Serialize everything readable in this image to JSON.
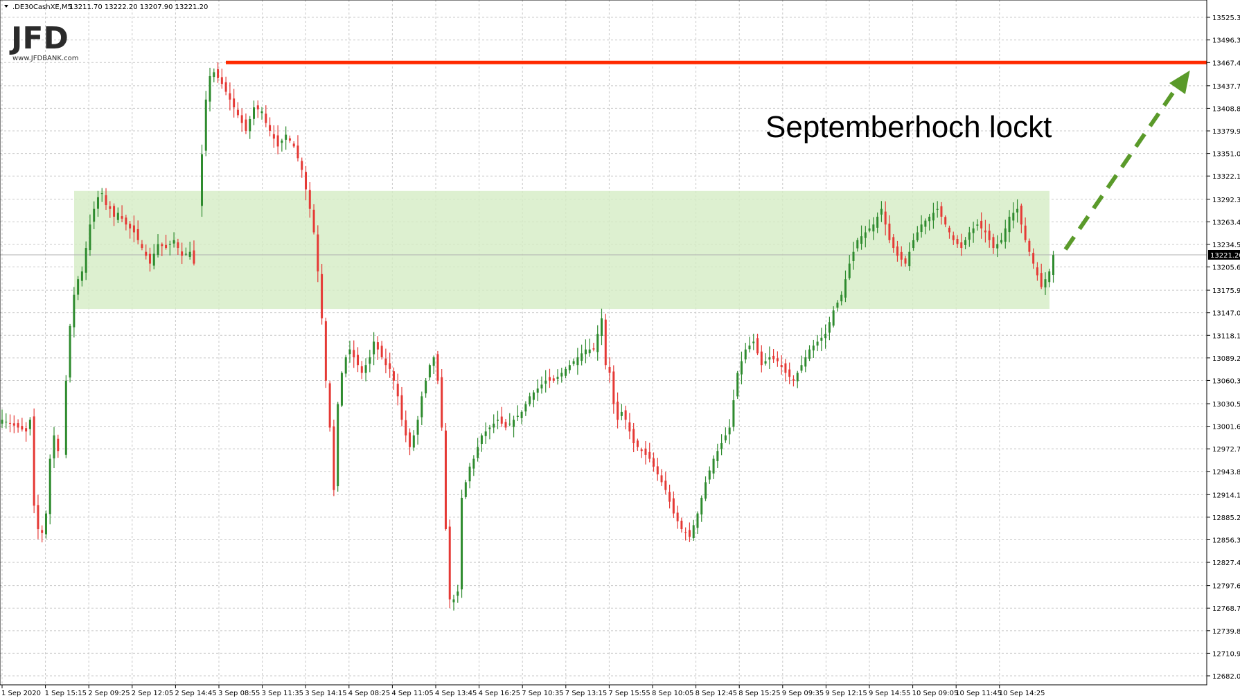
{
  "header": {
    "symbol": ".DE30CashXE,M5",
    "ohlc": "13211.70 13222.20 13207.90 13221.20"
  },
  "logo": {
    "brand": "JFD",
    "site": "www.JFDBANK.com"
  },
  "annotation": {
    "text": "Septemberhoch lockt"
  },
  "colors": {
    "bull": "#2e8b2e",
    "bear": "#e53935",
    "grid": "#c8c8c8",
    "zone": "#d4ecc4",
    "resistance": "#ff2a00",
    "arrow": "#5a9a2a",
    "price_tag_bg": "#000000"
  },
  "chart_data": {
    "type": "candlestick",
    "timeframe": "M5",
    "y_axis_ticks": [
      "13525.35",
      "13496.35",
      "13467.45",
      "13437.70",
      "13408.80",
      "13379.90",
      "13351.00",
      "13322.10",
      "13292.35",
      "13263.45",
      "13234.55",
      "13205.65",
      "13175.90",
      "13147.00",
      "13118.10",
      "13089.20",
      "13060.30",
      "13030.55",
      "13001.65",
      "12972.75",
      "12943.85",
      "12914.10",
      "12885.20",
      "12856.30",
      "12827.40",
      "12797.65",
      "12768.75",
      "12739.85",
      "12710.95",
      "12682.05"
    ],
    "ylim": [
      12678,
      13541
    ],
    "x_axis_ticks": [
      "1 Sep 2020",
      "1 Sep 15:15",
      "2 Sep 09:25",
      "2 Sep 12:05",
      "2 Sep 14:45",
      "3 Sep 08:55",
      "3 Sep 11:35",
      "3 Sep 14:15",
      "4 Sep 08:25",
      "4 Sep 11:05",
      "4 Sep 13:45",
      "4 Sep 16:25",
      "7 Sep 10:35",
      "7 Sep 13:15",
      "7 Sep 15:55",
      "8 Sep 10:05",
      "8 Sep 12:45",
      "8 Sep 15:25",
      "9 Sep 09:35",
      "9 Sep 12:15",
      "9 Sep 14:55",
      "10 Sep 09:05",
      "10 Sep 11:45",
      "10 Sep 14:25"
    ],
    "current_price": "13221.20",
    "resistance_level": 13467.45,
    "zone": {
      "low": 13152,
      "high": 13303
    },
    "price_path": [
      [
        0,
        13010
      ],
      [
        2,
        13005
      ],
      [
        4,
        13000
      ],
      [
        6,
        12995
      ],
      [
        7,
        13010
      ],
      [
        8,
        12900
      ],
      [
        9,
        12870
      ],
      [
        10,
        12865
      ],
      [
        11,
        12890
      ],
      [
        12,
        12960
      ],
      [
        13,
        12990
      ],
      [
        14,
        12970
      ],
      [
        15,
        12965
      ],
      [
        16,
        13060
      ],
      [
        17,
        13130
      ],
      [
        18,
        13170
      ],
      [
        19,
        13190
      ],
      [
        20,
        13200
      ],
      [
        21,
        13230
      ],
      [
        22,
        13260
      ],
      [
        23,
        13280
      ],
      [
        24,
        13295
      ],
      [
        25,
        13300
      ],
      [
        26,
        13285
      ],
      [
        27,
        13280
      ],
      [
        28,
        13270
      ],
      [
        29,
        13275
      ],
      [
        31,
        13260
      ],
      [
        33,
        13250
      ],
      [
        35,
        13230
      ],
      [
        37,
        13210
      ],
      [
        39,
        13235
      ],
      [
        41,
        13230
      ],
      [
        43,
        13240
      ],
      [
        45,
        13220
      ],
      [
        47,
        13225
      ],
      [
        48,
        13210
      ],
      [
        50,
        13350
      ],
      [
        51,
        13420
      ],
      [
        52,
        13450
      ],
      [
        53,
        13455
      ],
      [
        55,
        13440
      ],
      [
        57,
        13420
      ],
      [
        59,
        13400
      ],
      [
        61,
        13380
      ],
      [
        63,
        13410
      ],
      [
        65,
        13405
      ],
      [
        66,
        13390
      ],
      [
        67,
        13380
      ],
      [
        68,
        13370
      ],
      [
        69,
        13360
      ],
      [
        71,
        13375
      ],
      [
        73,
        13360
      ],
      [
        75,
        13330
      ],
      [
        77,
        13280
      ],
      [
        78,
        13250
      ],
      [
        79,
        13200
      ],
      [
        80,
        13140
      ],
      [
        81,
        13060
      ],
      [
        82,
        13000
      ],
      [
        83,
        12920
      ],
      [
        84,
        13030
      ],
      [
        85,
        13070
      ],
      [
        86,
        13090
      ],
      [
        87,
        13100
      ],
      [
        88,
        13090
      ],
      [
        89,
        13080
      ],
      [
        90,
        13070
      ],
      [
        91,
        13080
      ],
      [
        92,
        13090
      ],
      [
        93,
        13110
      ],
      [
        94,
        13100
      ],
      [
        95,
        13090
      ],
      [
        96,
        13080
      ],
      [
        97,
        13075
      ],
      [
        98,
        13060
      ],
      [
        99,
        13040
      ],
      [
        100,
        13010
      ],
      [
        101,
        12990
      ],
      [
        102,
        12975
      ],
      [
        103,
        12990
      ],
      [
        104,
        13010
      ],
      [
        105,
        13040
      ],
      [
        106,
        13060
      ],
      [
        107,
        13080
      ],
      [
        108,
        13090
      ],
      [
        109,
        13060
      ],
      [
        110,
        13000
      ],
      [
        111,
        12870
      ],
      [
        112,
        12780
      ],
      [
        113,
        12780
      ],
      [
        114,
        12790
      ],
      [
        115,
        12910
      ],
      [
        116,
        12930
      ],
      [
        117,
        12950
      ],
      [
        118,
        12960
      ],
      [
        120,
        12990
      ],
      [
        122,
        13000
      ],
      [
        124,
        13010
      ],
      [
        126,
        13000
      ],
      [
        128,
        13010
      ],
      [
        130,
        13020
      ],
      [
        132,
        13040
      ],
      [
        134,
        13050
      ],
      [
        136,
        13060
      ],
      [
        138,
        13060
      ],
      [
        140,
        13070
      ],
      [
        142,
        13080
      ],
      [
        144,
        13090
      ],
      [
        146,
        13100
      ],
      [
        148,
        13100
      ],
      [
        149,
        13120
      ],
      [
        150,
        13140
      ],
      [
        151,
        13080
      ],
      [
        152,
        13070
      ],
      [
        153,
        13030
      ],
      [
        154,
        13010
      ],
      [
        155,
        13020
      ],
      [
        156,
        13010
      ],
      [
        158,
        12980
      ],
      [
        160,
        12970
      ],
      [
        162,
        12960
      ],
      [
        164,
        12940
      ],
      [
        166,
        12920
      ],
      [
        168,
        12890
      ],
      [
        170,
        12870
      ],
      [
        172,
        12860
      ],
      [
        174,
        12890
      ],
      [
        176,
        12930
      ],
      [
        178,
        12960
      ],
      [
        180,
        12980
      ],
      [
        182,
        13000
      ],
      [
        184,
        13070
      ],
      [
        186,
        13100
      ],
      [
        188,
        13110
      ],
      [
        190,
        13080
      ],
      [
        192,
        13090
      ],
      [
        194,
        13085
      ],
      [
        196,
        13070
      ],
      [
        198,
        13060
      ],
      [
        200,
        13080
      ],
      [
        202,
        13100
      ],
      [
        204,
        13110
      ],
      [
        206,
        13120
      ],
      [
        208,
        13150
      ],
      [
        210,
        13170
      ],
      [
        212,
        13210
      ],
      [
        214,
        13240
      ],
      [
        216,
        13250
      ],
      [
        218,
        13260
      ],
      [
        220,
        13280
      ],
      [
        222,
        13240
      ],
      [
        224,
        13220
      ],
      [
        226,
        13210
      ],
      [
        228,
        13240
      ],
      [
        230,
        13260
      ],
      [
        232,
        13270
      ],
      [
        234,
        13280
      ],
      [
        236,
        13260
      ],
      [
        238,
        13240
      ],
      [
        240,
        13230
      ],
      [
        242,
        13250
      ],
      [
        244,
        13260
      ],
      [
        246,
        13250
      ],
      [
        248,
        13230
      ],
      [
        250,
        13240
      ],
      [
        252,
        13270
      ],
      [
        254,
        13280
      ],
      [
        256,
        13240
      ],
      [
        258,
        13210
      ],
      [
        260,
        13180
      ],
      [
        262,
        13200
      ],
      [
        263,
        13221
      ]
    ]
  }
}
